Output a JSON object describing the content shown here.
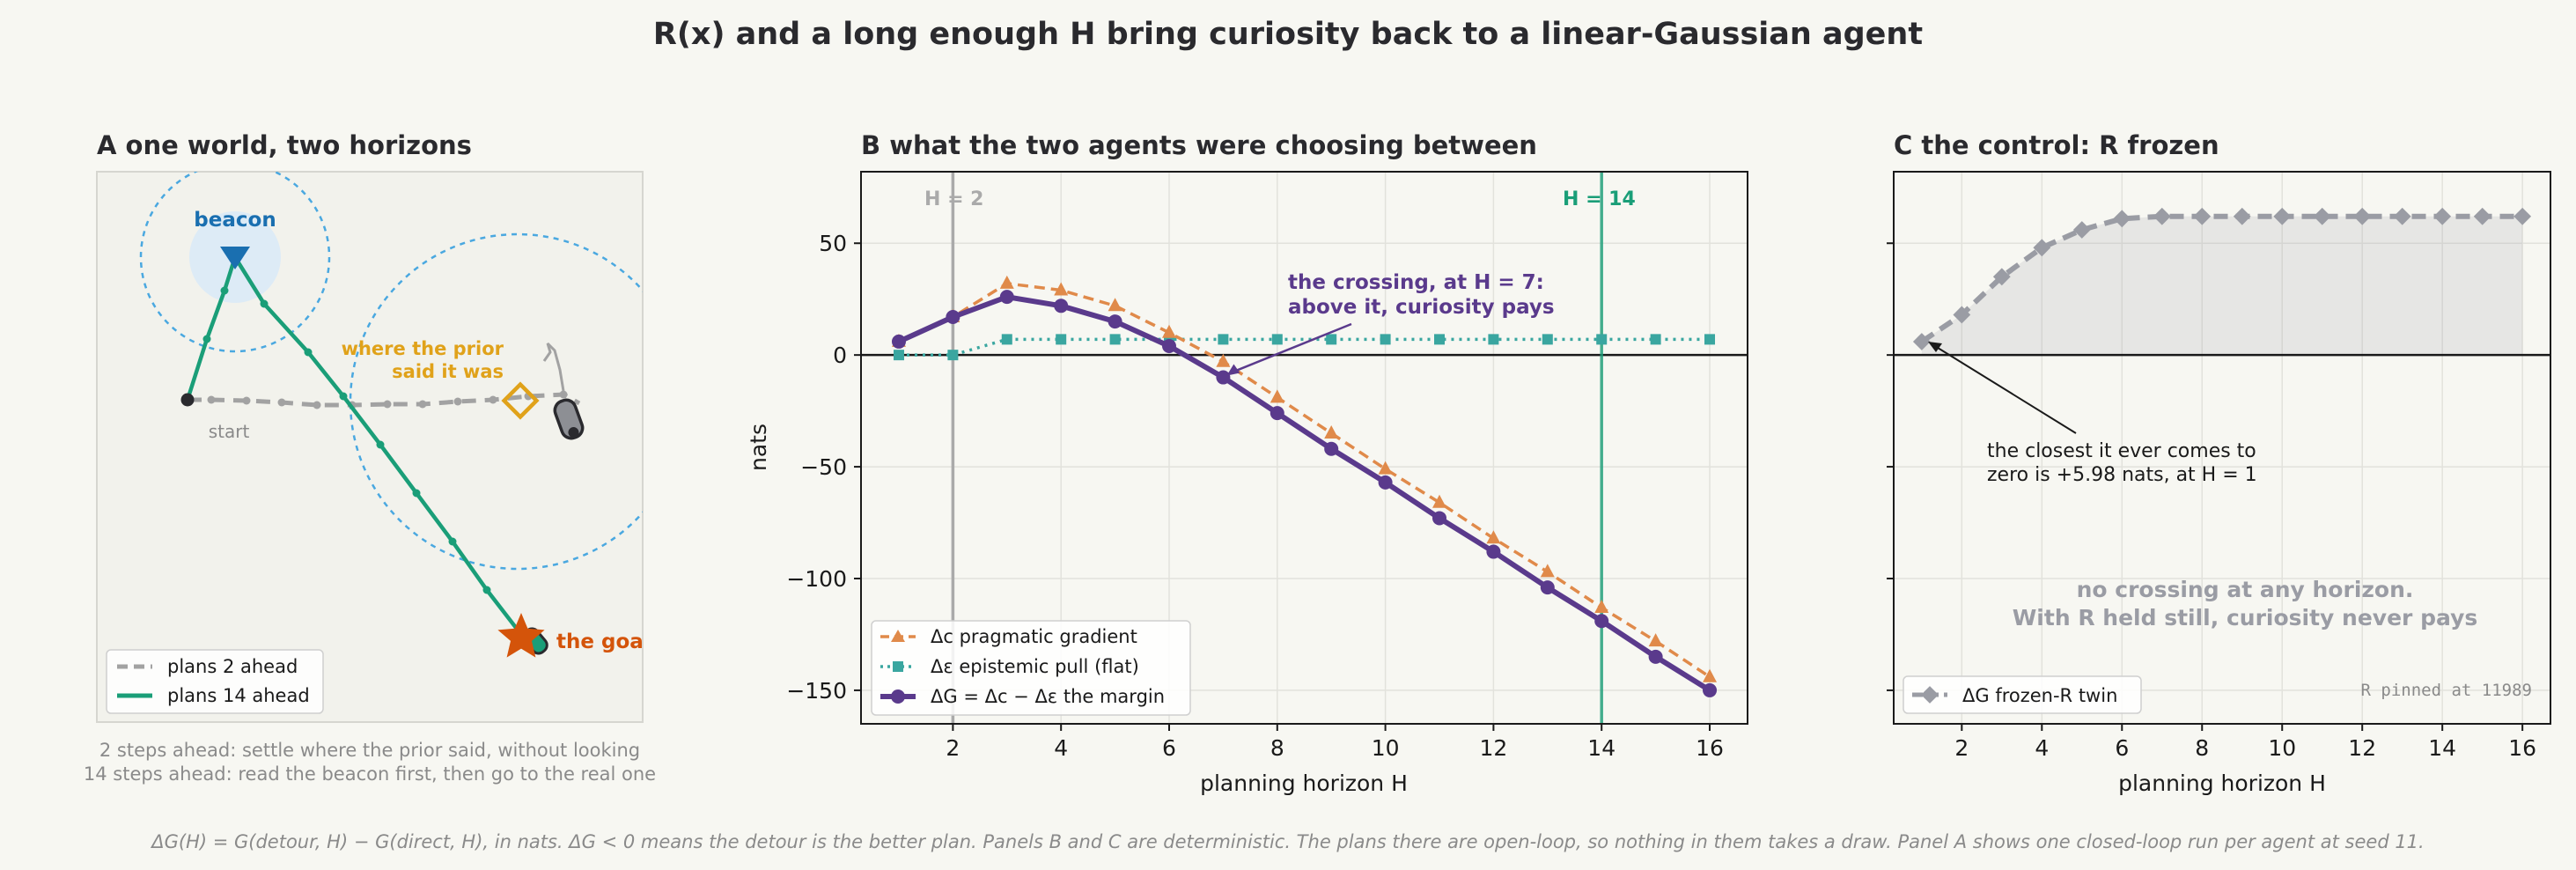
{
  "suptitle": "R(x) and a long enough H bring curiosity back to a linear-Gaussian agent",
  "footer": "ΔG(H) = G(detour, H) − G(direct, H), in nats. ΔG < 0 means the detour is the better plan. Panels B and C are deterministic. The plans there are open-loop, so nothing in them takes a draw. Panel A shows one closed-loop run per agent at seed 11.",
  "colors": {
    "pragmatic": "#e08a4a",
    "epistemic": "#3aa6a0",
    "margin": "#5a3a8c",
    "frozen": "#9a9ca4",
    "h2": "#aaaaaa",
    "h14": "#1a9e78",
    "beacon": "#1a6fb0",
    "prior": "#e0a21a",
    "goal": "#d4540a"
  },
  "panel_a": {
    "title": "A  one world, two horizons",
    "beacon_label": "beacon",
    "prior_label_line1": "where the prior",
    "prior_label_line2": "said it was",
    "start_label": "start",
    "goal_label": "the goal",
    "legend": [
      "plans 2 ahead",
      "plans 14 ahead"
    ],
    "caption_line1": "2 steps ahead: settle where the prior said, without looking",
    "caption_line2": "14 steps ahead: read the beacon first, then go to the real one"
  },
  "chart_data": [
    {
      "type": "line",
      "title": "B  what the two agents were choosing between",
      "xlabel": "planning horizon H",
      "ylabel": "nats",
      "xlim": [
        0.3,
        16.7
      ],
      "ylim": [
        -165,
        82
      ],
      "xticks": [
        2,
        4,
        6,
        8,
        10,
        12,
        14,
        16
      ],
      "yticks": [
        50,
        0,
        -50,
        -100,
        -150
      ],
      "grid": true,
      "legend_position": "bottom-left",
      "x": [
        1,
        2,
        3,
        4,
        5,
        6,
        7,
        8,
        9,
        10,
        11,
        12,
        13,
        14,
        15,
        16
      ],
      "series": [
        {
          "name": "Δc  pragmatic gradient",
          "marker": "triangle",
          "style": "dashed",
          "values": [
            6,
            17,
            32,
            29,
            22,
            10,
            -3,
            -19,
            -35,
            -51,
            -66,
            -82,
            -97,
            -113,
            -128,
            -144
          ]
        },
        {
          "name": "Δε  epistemic pull (flat)",
          "marker": "square",
          "style": "dotted",
          "values": [
            0,
            0,
            7,
            7,
            7,
            7,
            7,
            7,
            7,
            7,
            7,
            7,
            7,
            7,
            7,
            7
          ]
        },
        {
          "name": "ΔG = Δc − Δε  the margin",
          "marker": "circle",
          "style": "solid",
          "values": [
            6,
            17,
            26,
            22,
            15,
            4,
            -10,
            -26,
            -42,
            -57,
            -73,
            -88,
            -104,
            -119,
            -135,
            -150
          ]
        }
      ],
      "vlines": [
        {
          "x": 2,
          "label": "H = 2"
        },
        {
          "x": 14,
          "label": "H = 14"
        }
      ],
      "annotation": {
        "line1": "the crossing, at H = 7:",
        "line2": "above it, curiosity pays",
        "x": 7,
        "y": -10
      }
    },
    {
      "type": "line",
      "title": "C  the control: R frozen",
      "xlabel": "planning horizon H",
      "ylabel": "",
      "xlim": [
        0.3,
        16.7
      ],
      "ylim": [
        -165,
        82
      ],
      "xticks": [
        2,
        4,
        6,
        8,
        10,
        12,
        14,
        16
      ],
      "grid": true,
      "legend_position": "bottom-left",
      "x": [
        1,
        2,
        3,
        4,
        5,
        6,
        7,
        8,
        9,
        10,
        11,
        12,
        13,
        14,
        15,
        16
      ],
      "series": [
        {
          "name": "ΔG  frozen-R twin",
          "marker": "diamond",
          "style": "dashed",
          "values": [
            5.98,
            18,
            35,
            48,
            56,
            61,
            62,
            62,
            62,
            62,
            62,
            62,
            62,
            62,
            62,
            62
          ]
        }
      ],
      "annotation": {
        "line1": "the closest it ever comes to",
        "line2": "zero is +5.98 nats, at H = 1",
        "x": 1,
        "y": 5.98
      },
      "note_line1": "no crossing at any horizon.",
      "note_line2": "With R held still, curiosity never pays",
      "corner_text": "R pinned at 11989"
    }
  ]
}
